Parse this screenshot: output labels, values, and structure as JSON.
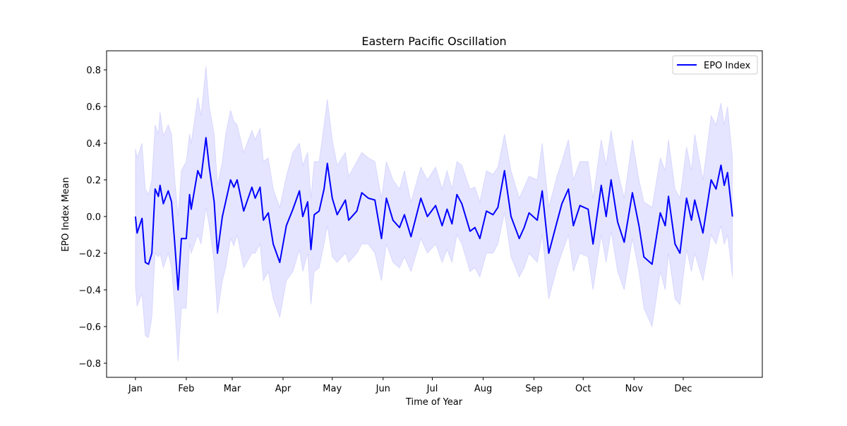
{
  "chart_data": {
    "type": "line",
    "title": "Eastern Pacific Oscillation",
    "xlabel": "Time of Year",
    "ylabel": "EPO Index Mean",
    "xlim": [
      -17.6,
      382.2
    ],
    "ylim": [
      -0.877,
      0.904
    ],
    "xticks": [
      {
        "value": 0,
        "label": "Jan"
      },
      {
        "value": 31,
        "label": "Feb"
      },
      {
        "value": 59,
        "label": "Mar"
      },
      {
        "value": 90,
        "label": "Apr"
      },
      {
        "value": 120,
        "label": "May"
      },
      {
        "value": 151,
        "label": "Jun"
      },
      {
        "value": 181,
        "label": "Jul"
      },
      {
        "value": 212,
        "label": "Aug"
      },
      {
        "value": 243,
        "label": "Sep"
      },
      {
        "value": 273,
        "label": "Oct"
      },
      {
        "value": 304,
        "label": "Nov"
      },
      {
        "value": 334,
        "label": "Dec"
      }
    ],
    "yticks": [
      {
        "value": -0.8,
        "label": "−0.8"
      },
      {
        "value": -0.6,
        "label": "−0.6"
      },
      {
        "value": -0.4,
        "label": "−0.4"
      },
      {
        "value": -0.2,
        "label": "−0.2"
      },
      {
        "value": 0,
        "label": "0.0"
      },
      {
        "value": 0.2,
        "label": "0.2"
      },
      {
        "value": 0.4,
        "label": "0.4"
      },
      {
        "value": 0.6,
        "label": "0.6"
      },
      {
        "value": 0.8,
        "label": "0.8"
      }
    ],
    "legend": "upper right",
    "x": [
      0,
      1,
      4,
      6,
      8,
      10,
      12,
      14,
      15,
      17,
      20,
      22,
      24,
      26,
      28,
      31,
      33,
      34,
      38,
      40,
      43,
      45,
      48,
      50,
      53,
      55,
      58,
      60,
      62,
      66,
      71,
      73,
      76,
      78,
      81,
      84,
      88,
      92,
      96,
      100,
      102,
      105,
      107,
      109,
      112,
      115,
      117,
      120,
      123,
      128,
      130,
      135,
      138,
      142,
      146,
      150,
      153,
      157,
      161,
      164,
      168,
      174,
      178,
      183,
      187,
      190,
      193,
      196,
      199,
      204,
      207,
      210,
      214,
      218,
      221,
      225,
      229,
      234,
      237,
      240,
      245,
      248,
      252,
      257,
      260,
      264,
      267,
      271,
      276,
      279,
      284,
      287,
      290,
      294,
      298,
      303,
      307,
      310,
      315,
      320,
      323,
      325,
      329,
      332,
      336,
      339,
      341,
      346,
      351,
      354,
      357,
      359,
      361,
      364
    ],
    "series": [
      {
        "name": "EPO Index",
        "color": "#0000ff",
        "values": [
          0.0,
          -0.09,
          -0.01,
          -0.25,
          -0.26,
          -0.2,
          0.15,
          0.11,
          0.17,
          0.07,
          0.14,
          0.08,
          -0.15,
          -0.4,
          -0.12,
          -0.12,
          0.12,
          0.04,
          0.25,
          0.21,
          0.43,
          0.27,
          0.08,
          -0.2,
          0.0,
          0.08,
          0.2,
          0.16,
          0.2,
          0.03,
          0.16,
          0.1,
          0.16,
          -0.02,
          0.02,
          -0.15,
          -0.25,
          -0.05,
          0.04,
          0.14,
          0.0,
          0.08,
          -0.18,
          0.01,
          0.03,
          0.15,
          0.29,
          0.1,
          0.01,
          0.09,
          -0.02,
          0.03,
          0.13,
          0.1,
          0.09,
          -0.12,
          0.1,
          -0.02,
          -0.06,
          0.01,
          -0.11,
          0.1,
          0.0,
          0.06,
          -0.05,
          0.04,
          -0.04,
          0.12,
          0.07,
          -0.08,
          -0.06,
          -0.12,
          0.03,
          0.01,
          0.05,
          0.25,
          0.0,
          -0.12,
          -0.06,
          0.02,
          -0.02,
          0.14,
          -0.2,
          -0.03,
          0.07,
          0.15,
          -0.05,
          0.06,
          0.04,
          -0.15,
          0.17,
          0.0,
          0.2,
          -0.03,
          -0.14,
          0.13,
          -0.05,
          -0.22,
          -0.26,
          0.02,
          -0.05,
          0.11,
          -0.15,
          -0.2,
          0.1,
          -0.02,
          0.09,
          -0.09,
          0.2,
          0.15,
          0.28,
          0.17,
          0.24,
          0.0
        ]
      }
    ],
    "band": {
      "color": "#0000ff",
      "lower": [
        -0.38,
        -0.49,
        -0.42,
        -0.65,
        -0.66,
        -0.55,
        -0.2,
        -0.22,
        -0.2,
        -0.28,
        -0.2,
        -0.28,
        -0.5,
        -0.79,
        -0.5,
        -0.5,
        -0.15,
        -0.2,
        -0.1,
        -0.15,
        0.05,
        -0.05,
        -0.25,
        -0.53,
        -0.35,
        -0.28,
        -0.12,
        -0.16,
        -0.1,
        -0.28,
        -0.2,
        -0.2,
        -0.15,
        -0.35,
        -0.3,
        -0.45,
        -0.55,
        -0.35,
        -0.3,
        -0.18,
        -0.3,
        -0.2,
        -0.48,
        -0.3,
        -0.28,
        -0.15,
        -0.05,
        -0.22,
        -0.25,
        -0.2,
        -0.25,
        -0.2,
        -0.15,
        -0.15,
        -0.2,
        -0.35,
        -0.15,
        -0.25,
        -0.28,
        -0.22,
        -0.3,
        -0.12,
        -0.2,
        -0.15,
        -0.25,
        -0.18,
        -0.25,
        -0.1,
        -0.15,
        -0.3,
        -0.28,
        -0.33,
        -0.2,
        -0.2,
        -0.15,
        0.02,
        -0.22,
        -0.33,
        -0.28,
        -0.2,
        -0.25,
        -0.1,
        -0.45,
        -0.28,
        -0.2,
        -0.1,
        -0.3,
        -0.2,
        -0.22,
        -0.4,
        -0.1,
        -0.25,
        -0.08,
        -0.3,
        -0.4,
        -0.12,
        -0.3,
        -0.5,
        -0.6,
        -0.3,
        -0.4,
        -0.2,
        -0.45,
        -0.48,
        -0.18,
        -0.3,
        -0.2,
        -0.35,
        -0.1,
        -0.15,
        -0.05,
        -0.15,
        -0.1,
        -0.33
      ],
      "upper": [
        0.37,
        0.32,
        0.4,
        0.15,
        0.12,
        0.2,
        0.5,
        0.45,
        0.57,
        0.44,
        0.5,
        0.45,
        0.2,
        0.0,
        0.25,
        0.3,
        0.45,
        0.4,
        0.65,
        0.55,
        0.82,
        0.6,
        0.45,
        0.17,
        0.3,
        0.45,
        0.58,
        0.52,
        0.5,
        0.35,
        0.47,
        0.42,
        0.48,
        0.3,
        0.32,
        0.15,
        0.05,
        0.22,
        0.35,
        0.4,
        0.28,
        0.35,
        0.1,
        0.3,
        0.3,
        0.5,
        0.64,
        0.42,
        0.28,
        0.35,
        0.22,
        0.3,
        0.35,
        0.32,
        0.3,
        0.1,
        0.3,
        0.2,
        0.15,
        0.25,
        0.08,
        0.27,
        0.2,
        0.27,
        0.15,
        0.25,
        0.15,
        0.3,
        0.28,
        0.15,
        0.16,
        0.08,
        0.25,
        0.23,
        0.27,
        0.45,
        0.25,
        0.1,
        0.16,
        0.22,
        0.2,
        0.4,
        0.05,
        0.22,
        0.3,
        0.42,
        0.2,
        0.3,
        0.3,
        0.1,
        0.42,
        0.28,
        0.47,
        0.25,
        0.1,
        0.42,
        0.2,
        0.08,
        0.05,
        0.32,
        0.25,
        0.42,
        0.15,
        0.1,
        0.38,
        0.25,
        0.45,
        0.2,
        0.55,
        0.5,
        0.62,
        0.5,
        0.6,
        0.32
      ]
    }
  }
}
